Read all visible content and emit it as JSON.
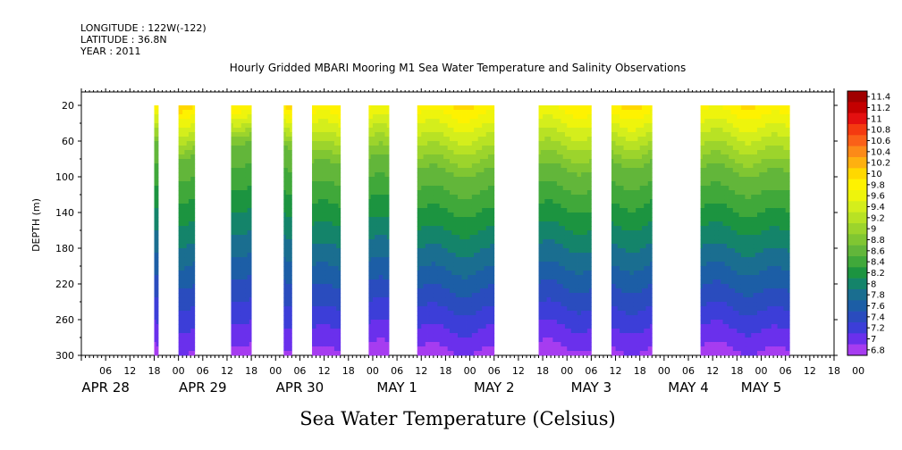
{
  "header": {
    "longitude": "LONGITUDE : 122W(-122)",
    "latitude": "LATITUDE : 36.8N",
    "year": "YEAR : 2011"
  },
  "chart_data": {
    "type": "heatmap",
    "title": "Hourly Gridded MBARI Mooring M1 Sea Water Temperature and Salinity Observations",
    "ylabel": "DEPTH (m)",
    "xlabel": "Sea Water Temperature (Celsius)",
    "x_range_hours": [
      0,
      186
    ],
    "x_origin": "APR 28 00",
    "y_range": [
      300,
      5
    ],
    "y_reversed": true,
    "y_ticks": [
      20,
      60,
      100,
      140,
      180,
      220,
      260,
      300
    ],
    "x_tick_labels": [
      "06",
      "12",
      "18",
      "00",
      "06",
      "12",
      "18",
      "00",
      "06",
      "12",
      "18",
      "00",
      "06",
      "12",
      "18",
      "00",
      "06",
      "12",
      "18",
      "00",
      "06",
      "12",
      "18",
      "00",
      "06",
      "12",
      "18",
      "00",
      "06",
      "12",
      "18",
      "00"
    ],
    "date_labels": [
      {
        "label": "APR 28",
        "hour": 6
      },
      {
        "label": "APR 29",
        "hour": 30
      },
      {
        "label": "APR 30",
        "hour": 54
      },
      {
        "label": "MAY  1",
        "hour": 78
      },
      {
        "label": "MAY  2",
        "hour": 102
      },
      {
        "label": "MAY  3",
        "hour": 126
      },
      {
        "label": "MAY  4",
        "hour": 150
      },
      {
        "label": "MAY  5",
        "hour": 168
      }
    ],
    "colorbar": {
      "levels": [
        "11.4",
        "11.2",
        "11",
        "10.8",
        "10.6",
        "10.4",
        "10.2",
        "10",
        "9.8",
        "9.6",
        "9.4",
        "9.2",
        "9",
        "8.8",
        "8.6",
        "8.4",
        "8.2",
        "8",
        "7.8",
        "7.6",
        "7.4",
        "7.2",
        "7",
        "6.8"
      ],
      "colors": [
        "#a00000",
        "#c40000",
        "#e41010",
        "#f43a10",
        "#fa6018",
        "#fc8a18",
        "#feb010",
        "#ffd800",
        "#fef200",
        "#eef40c",
        "#d4ee1c",
        "#b8e224",
        "#9cd42c",
        "#80c632",
        "#62b63a",
        "#40a83a",
        "#1c9440",
        "#14846a",
        "#1a6e90",
        "#1c5ea6",
        "#2a4cbe",
        "#3c3ed8",
        "#6a30ec",
        "#a63cf0"
      ]
    },
    "data_segments": [
      {
        "start_hour": 18,
        "end_hour": 19,
        "thermocline_depth": 60
      },
      {
        "start_hour": 24,
        "end_hour": 28,
        "thermocline_depth": 70
      },
      {
        "start_hour": 37,
        "end_hour": 42,
        "thermocline_depth": 60
      },
      {
        "start_hour": 50,
        "end_hour": 52,
        "thermocline_depth": 60
      },
      {
        "start_hour": 57,
        "end_hour": 64,
        "thermocline_depth": 80
      },
      {
        "start_hour": 71,
        "end_hour": 76,
        "thermocline_depth": 80
      },
      {
        "start_hour": 83,
        "end_hour": 102,
        "thermocline_depth": 90
      },
      {
        "start_hour": 113,
        "end_hour": 126,
        "thermocline_depth": 90
      },
      {
        "start_hour": 131,
        "end_hour": 141,
        "thermocline_depth": 80
      },
      {
        "start_hour": 153,
        "end_hour": 175,
        "thermocline_depth": 90
      }
    ],
    "grid": false,
    "legend": "right"
  }
}
